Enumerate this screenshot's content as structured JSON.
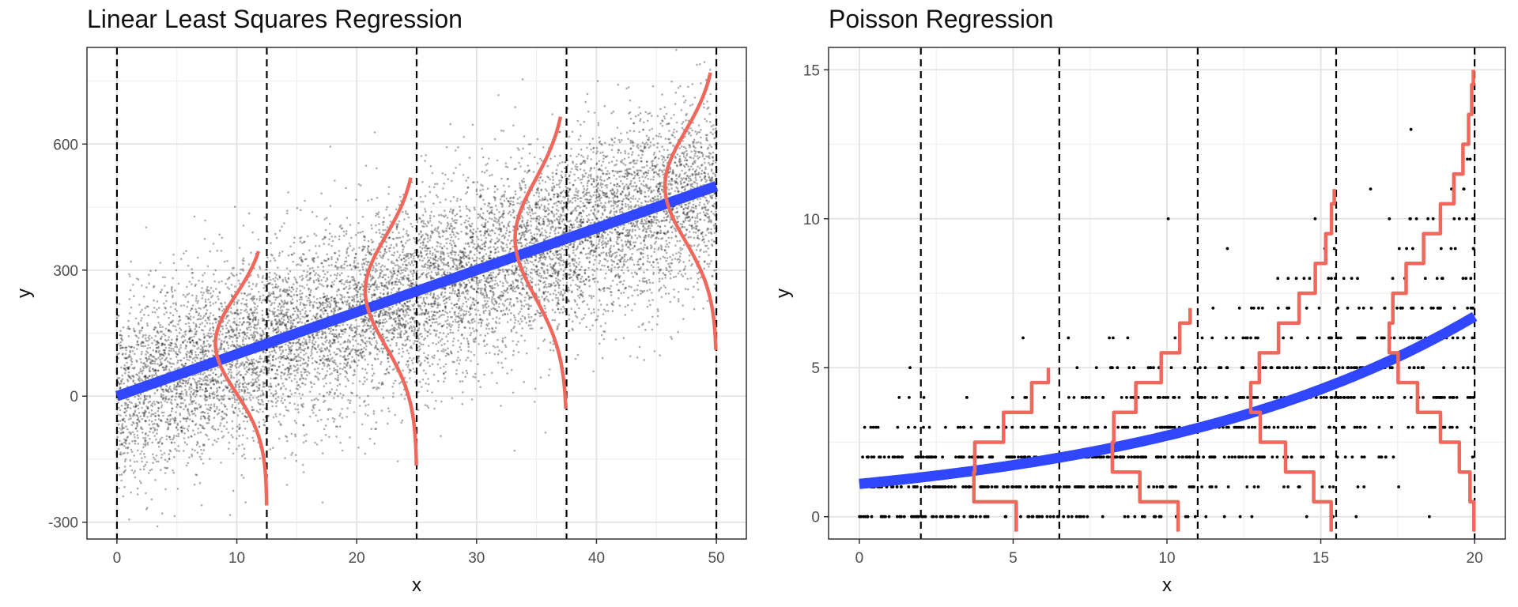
{
  "chart_data": [
    {
      "type": "scatter",
      "title": "Linear Least Squares Regression",
      "xlabel": "x",
      "ylabel": "y",
      "xlim": [
        -2.5,
        52.5
      ],
      "ylim": [
        -340,
        830
      ],
      "xticks": [
        0,
        10,
        20,
        30,
        40,
        50
      ],
      "yticks": [
        -300,
        0,
        300,
        600
      ],
      "grid": true,
      "legend": "none",
      "fit_line": {
        "type": "linear",
        "intercept": 0,
        "slope": 10,
        "x_range": [
          0,
          50
        ],
        "color": "#3047ff"
      },
      "vlines": [
        0,
        12.5,
        25,
        37.5,
        50
      ],
      "points_description_values": {
        "n": 10000,
        "x_range": [
          0,
          50
        ],
        "y_mean_slope": 10,
        "y_sd": 110
      },
      "densities": [
        {
          "x": 12.5,
          "mean": 125,
          "sd": 115,
          "range": [
            -260,
            345
          ]
        },
        {
          "x": 25,
          "mean": 250,
          "sd": 130,
          "range": [
            -165,
            520
          ]
        },
        {
          "x": 37.5,
          "mean": 375,
          "sd": 140,
          "range": [
            -30,
            665
          ]
        },
        {
          "x": 50,
          "mean": 500,
          "sd": 130,
          "range": [
            110,
            770
          ]
        }
      ],
      "colors": {
        "points": "#000000",
        "fit": "#3047ff",
        "density": "#f0675c"
      }
    },
    {
      "type": "scatter",
      "title": "Poisson Regression",
      "xlabel": "x",
      "ylabel": "y",
      "xlim": [
        -1,
        21
      ],
      "ylim": [
        -0.75,
        15.75
      ],
      "xticks": [
        0,
        5,
        10,
        15,
        20
      ],
      "yticks": [
        0,
        5,
        10,
        15
      ],
      "grid": true,
      "legend": "none",
      "fit_line": {
        "type": "exponential",
        "a": 1.1,
        "b": 0.0905,
        "x_range": [
          0,
          20
        ],
        "color": "#3047ff"
      },
      "vlines": [
        2,
        6.5,
        11,
        15.5,
        20
      ],
      "points_description_values": {
        "n": 1000,
        "x_range": [
          0,
          20
        ],
        "y_max": 15
      },
      "densities": [
        {
          "x": 6.5,
          "lambda": 1.98,
          "y_max": 5
        },
        {
          "x": 11,
          "lambda": 2.95,
          "y_max": 7
        },
        {
          "x": 15.5,
          "lambda": 4.5,
          "y_max": 11
        },
        {
          "x": 20,
          "lambda": 6.7,
          "y_max": 15
        }
      ],
      "colors": {
        "points": "#000000",
        "fit": "#3047ff",
        "density": "#f0675c"
      }
    }
  ]
}
